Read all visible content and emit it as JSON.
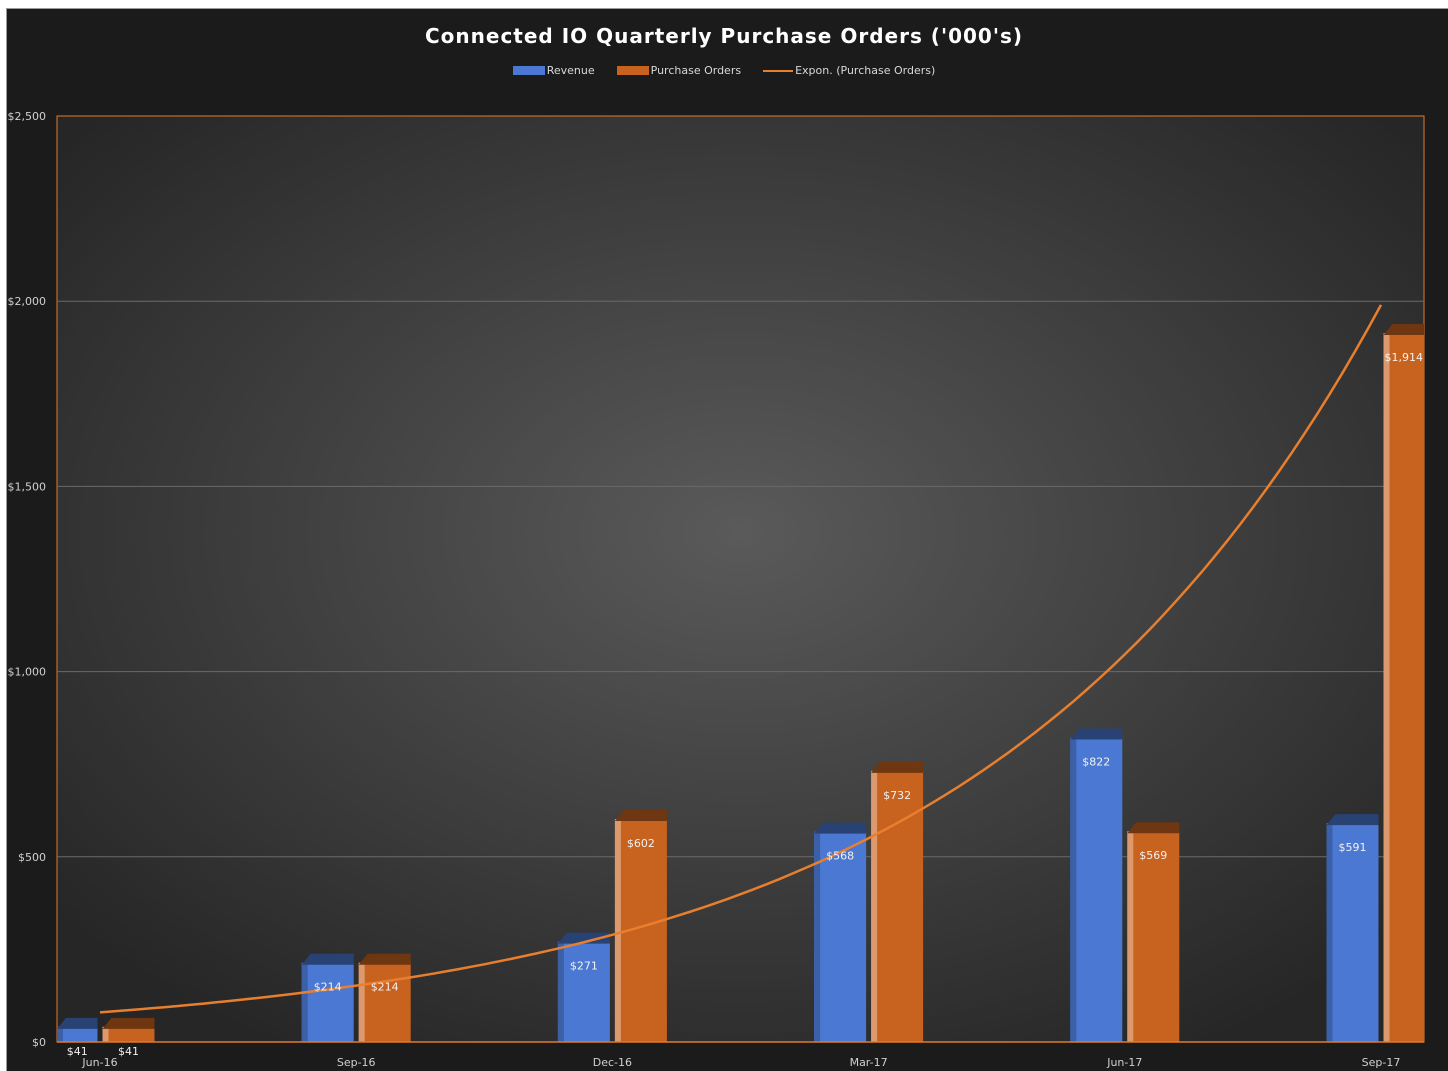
{
  "chart_data": {
    "type": "bar",
    "title": "Connected IO Quarterly Purchase Orders ('000's)",
    "categories": [
      "Jun-16",
      "Sep-16",
      "Dec-16",
      "Mar-17",
      "Jun-17",
      "Sep-17"
    ],
    "series": [
      {
        "name": "Revenue",
        "values": [
          41,
          214,
          271,
          568,
          822,
          591
        ],
        "labels": [
          "$41",
          "$214",
          "$271",
          "$568",
          "$822",
          "$591"
        ],
        "color": "#4a78d2"
      },
      {
        "name": "Purchase Orders",
        "values": [
          41,
          214,
          602,
          732,
          569,
          1914
        ],
        "labels": [
          "$41",
          "$214",
          "$602",
          "$732",
          "$569",
          "$1,914"
        ],
        "color": "#c8621f"
      }
    ],
    "trendline": {
      "name": "Expon.  (Purchase Orders)",
      "type": "exponential",
      "of_series": "Purchase Orders",
      "values": [
        80,
        140,
        285,
        550,
        1020,
        1990
      ],
      "color": "#e87f2e"
    },
    "ylim": [
      0,
      2500
    ],
    "yticks": [
      0,
      500,
      1000,
      1500,
      2000,
      2500
    ],
    "ytick_labels": [
      "$0",
      "$500",
      "$1,000",
      "$1,500",
      "$2,000",
      "$2,500"
    ],
    "grid": true,
    "legend_position": "top-center",
    "xlabel": "",
    "ylabel": ""
  }
}
